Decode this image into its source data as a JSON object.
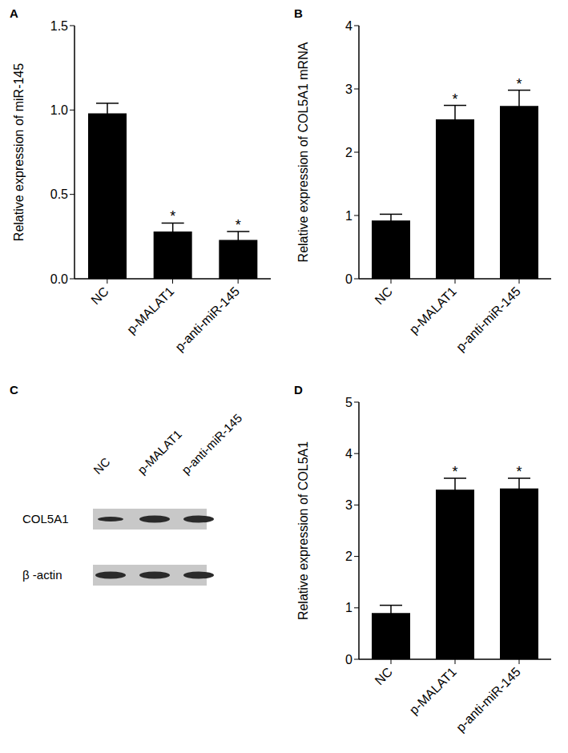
{
  "chart_data": [
    {
      "panel_label": "A",
      "type": "bar",
      "ylabel": "Relative expression of miR-145",
      "categories": [
        "NC",
        "p-MALAT1",
        "p-anti-miR-145"
      ],
      "values": [
        0.98,
        0.28,
        0.23
      ],
      "errors": [
        0.06,
        0.05,
        0.05
      ],
      "color": "#000000",
      "ylim": [
        0,
        1.5
      ],
      "yticks": [
        {
          "value": 0,
          "label": "0.0"
        },
        0.5,
        {
          "value": 1,
          "label": "1.0"
        },
        1.5
      ],
      "grid": false,
      "annotations": [
        {
          "category": "p-MALAT1",
          "text": "*"
        },
        {
          "category": "p-anti-miR-145",
          "text": "*"
        }
      ]
    },
    {
      "panel_label": "B",
      "type": "bar",
      "ylabel": "Relative expression of COL5A1 mRNA",
      "categories": [
        "NC",
        "p-MALAT1",
        "p-anti-miR-145"
      ],
      "values": [
        0.92,
        2.52,
        2.73
      ],
      "errors": [
        0.1,
        0.22,
        0.25
      ],
      "color": "#000000",
      "ylim": [
        0,
        4
      ],
      "yticks": [
        0,
        1,
        2,
        3,
        4
      ],
      "grid": false,
      "annotations": [
        {
          "category": "p-MALAT1",
          "text": "*"
        },
        {
          "category": "p-anti-miR-145",
          "text": "*"
        }
      ]
    },
    {
      "panel_label": "D",
      "type": "bar",
      "ylabel": "Relative expression of COL5A1",
      "categories": [
        "NC",
        "p-MALAT1",
        "p-anti-miR-145"
      ],
      "values": [
        0.9,
        3.3,
        3.32
      ],
      "errors": [
        0.15,
        0.22,
        0.2
      ],
      "color": "#000000",
      "ylim": [
        0,
        5
      ],
      "yticks": [
        0,
        1,
        2,
        3,
        4,
        5
      ],
      "grid": false,
      "annotations": [
        {
          "category": "p-MALAT1",
          "text": "*"
        },
        {
          "category": "p-anti-miR-145",
          "text": "*"
        }
      ]
    }
  ],
  "blot": {
    "panel_label": "C",
    "lanes": [
      "NC",
      "p-MALAT1",
      "p-anti-miR-145"
    ],
    "rows": [
      "COL5A1",
      "β -actin"
    ]
  }
}
